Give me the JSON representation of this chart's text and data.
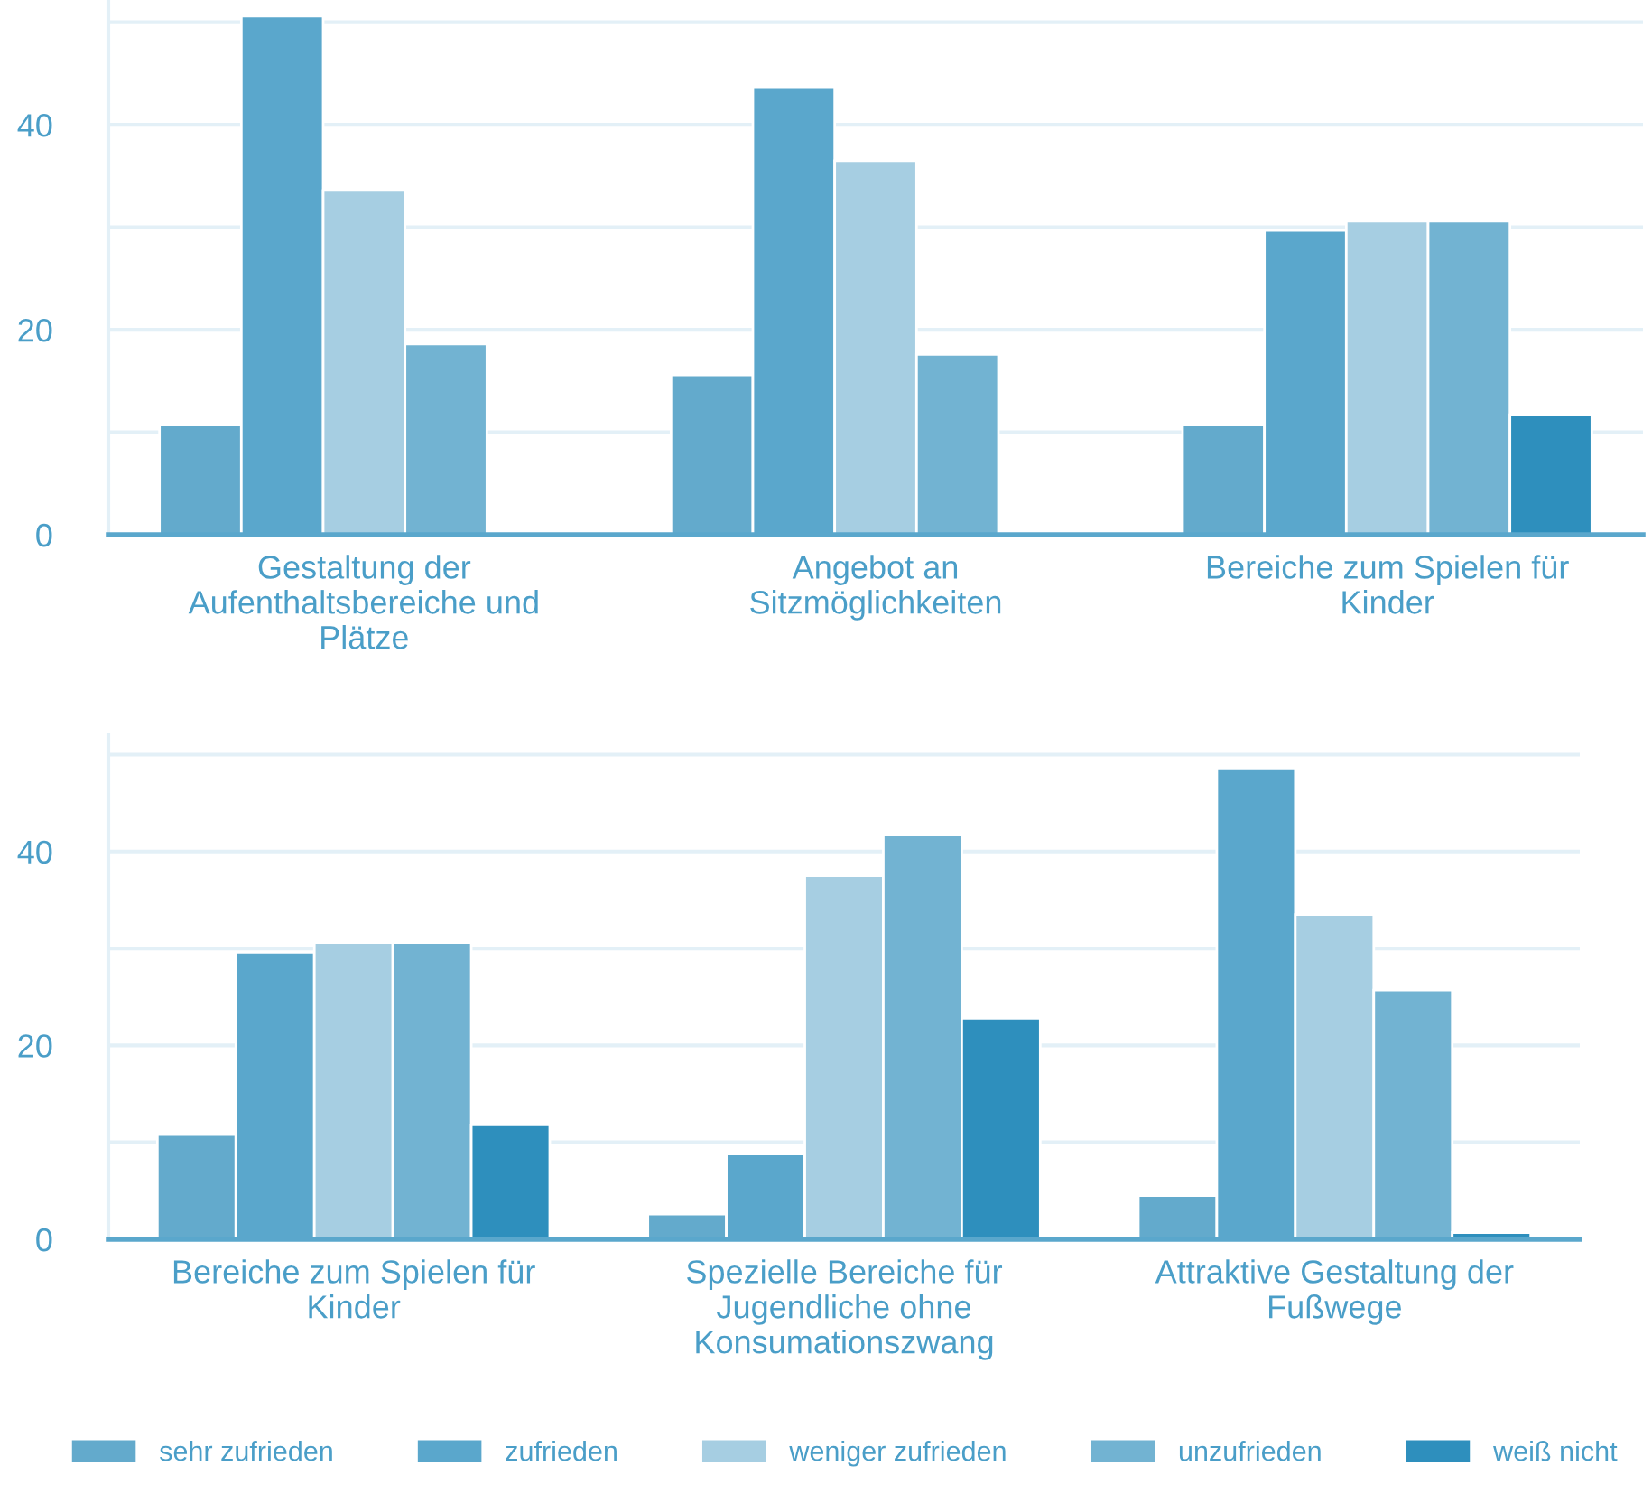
{
  "chart_data": [
    {
      "type": "bar",
      "categories": [
        "Gestaltung der\nAufenthaltsbereiche und\nPlätze",
        "Angebot an\nSitzmöglichkeiten",
        "Bereiche zum Spielen für\nKinder"
      ],
      "series": [
        {
          "color": "#63aacc",
          "values": [
            10.7,
            15.6,
            10.7
          ]
        },
        {
          "color": "#5aa7cc",
          "values": [
            50.6,
            43.7,
            29.7
          ]
        },
        {
          "color": "#a6cee2",
          "values": [
            33.6,
            36.5,
            30.6
          ]
        },
        {
          "color": "#72b3d2",
          "values": [
            18.6,
            17.6,
            30.6
          ]
        },
        {
          "color": "#2e8fbd",
          "values": [
            null,
            null,
            11.7
          ]
        }
      ],
      "ylim": [
        0,
        52
      ],
      "yticks": [
        0,
        {
          "value": 10,
          "label": null
        },
        20,
        {
          "value": 30,
          "label": null
        },
        40,
        {
          "value": 50,
          "label": null
        }
      ],
      "grid": "y"
    },
    {
      "type": "bar",
      "categories": [
        "Bereiche zum Spielen für\nKinder",
        "Spezielle Bereiche für\nJugendliche ohne\nKonsumationszwang",
        "Attraktive Gestaltung der\nFußwege"
      ],
      "series": [
        {
          "name": "sehr zufrieden",
          "color": "#63aacc",
          "values": [
            10.8,
            2.6,
            4.5
          ]
        },
        {
          "name": "zufrieden",
          "color": "#5aa7cc",
          "values": [
            29.6,
            8.8,
            48.6
          ]
        },
        {
          "name": "weniger zufrieden",
          "color": "#a6cee2",
          "values": [
            30.6,
            37.5,
            33.5
          ]
        },
        {
          "name": "unzufrieden",
          "color": "#72b3d2",
          "values": [
            30.6,
            41.7,
            25.7
          ]
        },
        {
          "name": "weiß nicht",
          "color": "#2e8fbd",
          "values": [
            11.8,
            22.8,
            0.7
          ]
        }
      ],
      "ylim": [
        0,
        52
      ],
      "yticks": [
        0,
        {
          "value": 10,
          "label": null
        },
        20,
        {
          "value": 30,
          "label": null
        },
        40,
        {
          "value": 50,
          "label": null
        }
      ],
      "grid": "y",
      "legend": "bottom"
    }
  ]
}
